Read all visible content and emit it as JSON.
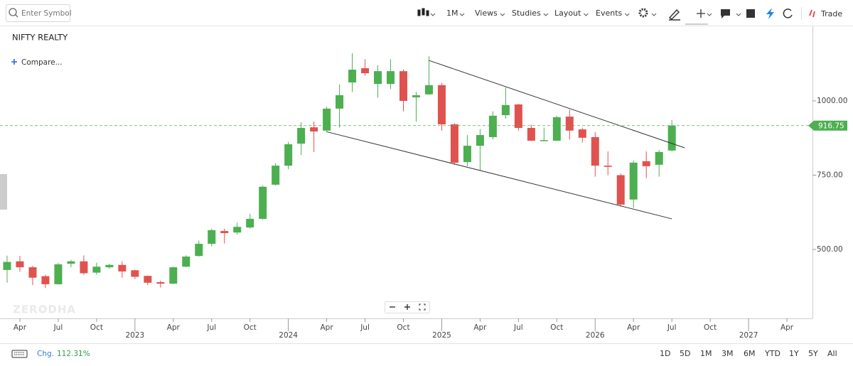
{
  "toolbar": {
    "search_placeholder": "Enter Symbol",
    "interval": "1M",
    "menus": [
      "Views",
      "Studies",
      "Layout",
      "Events"
    ],
    "trade": "Trade"
  },
  "chart_data": {
    "type": "candlestick",
    "title": "NIFTY REALTY",
    "compare": "Compare...",
    "watermark": "ZERODHA",
    "x": [
      "2022-03",
      "2022-04",
      "2022-05",
      "2022-06",
      "2022-07",
      "2022-08",
      "2022-09",
      "2022-10",
      "2022-11",
      "2022-12",
      "2023-01",
      "2023-02",
      "2023-03",
      "2023-04",
      "2023-05",
      "2023-06",
      "2023-07",
      "2023-08",
      "2023-09",
      "2023-10",
      "2023-11",
      "2023-12",
      "2024-01",
      "2024-02",
      "2024-03",
      "2024-04",
      "2024-05",
      "2024-06",
      "2024-07",
      "2024-08",
      "2024-09",
      "2024-10",
      "2024-11",
      "2024-12",
      "2025-01",
      "2025-02",
      "2025-03",
      "2025-04",
      "2025-05",
      "2025-06",
      "2025-07",
      "2025-08",
      "2025-09",
      "2025-10",
      "2025-11",
      "2025-12",
      "2026-01",
      "2026-02",
      "2026-03",
      "2026-04",
      "2026-05",
      "2026-06",
      "2026-07"
    ],
    "open": [
      431,
      460,
      440,
      410,
      383,
      452,
      460,
      422,
      440,
      448,
      430,
      411,
      390,
      385,
      442,
      478,
      519,
      562,
      557,
      574,
      603,
      718,
      782,
      856,
      911,
      900,
      974,
      1062,
      1110,
      1057,
      1057,
      1100,
      1012,
      1022,
      1053,
      921,
      794,
      849,
      878,
      952,
      988,
      909,
      866,
      866,
      947,
      904,
      878,
      782,
      750,
      668,
      797,
      785,
      833
    ],
    "high": [
      479,
      478,
      445,
      415,
      455,
      465,
      480,
      455,
      452,
      460,
      432,
      412,
      395,
      442,
      480,
      530,
      570,
      570,
      590,
      620,
      715,
      790,
      862,
      928,
      930,
      980,
      1055,
      1160,
      1140,
      1120,
      1140,
      1105,
      1030,
      1150,
      1060,
      925,
      885,
      905,
      965,
      1045,
      990,
      920,
      910,
      950,
      970,
      910,
      895,
      830,
      755,
      800,
      830,
      835,
      935
    ],
    "low": [
      388,
      425,
      380,
      370,
      382,
      440,
      415,
      415,
      435,
      405,
      400,
      380,
      372,
      383,
      440,
      476,
      510,
      520,
      550,
      570,
      600,
      715,
      770,
      818,
      828,
      895,
      910,
      1030,
      1085,
      1010,
      1040,
      965,
      930,
      1020,
      900,
      785,
      780,
      765,
      870,
      940,
      900,
      865,
      865,
      865,
      870,
      860,
      745,
      750,
      645,
      640,
      740,
      745,
      830
    ],
    "close": [
      458,
      440,
      405,
      383,
      450,
      460,
      420,
      442,
      448,
      426,
      408,
      388,
      385,
      440,
      476,
      519,
      565,
      555,
      576,
      603,
      711,
      782,
      854,
      909,
      897,
      974,
      1019,
      1105,
      1093,
      1100,
      1100,
      1000,
      1019,
      1053,
      921,
      792,
      849,
      885,
      950,
      986,
      909,
      866,
      868,
      945,
      900,
      876,
      782,
      778,
      651,
      792,
      780,
      828,
      917
    ],
    "up_color": "#4caf50",
    "down_color": "#e0524f",
    "xlim": [
      "2022-02",
      "2027-06"
    ],
    "xticks": [
      {
        "value": "2022-04",
        "label": "Apr"
      },
      {
        "value": "2022-07",
        "label": "Jul"
      },
      {
        "value": "2022-10",
        "label": "Oct"
      },
      {
        "value": "2023-01",
        "label": "2023"
      },
      {
        "value": "2023-04",
        "label": "Apr"
      },
      {
        "value": "2023-07",
        "label": "Jul"
      },
      {
        "value": "2023-10",
        "label": "Oct"
      },
      {
        "value": "2024-01",
        "label": "2024"
      },
      {
        "value": "2024-04",
        "label": "Apr"
      },
      {
        "value": "2024-07",
        "label": "Jul"
      },
      {
        "value": "2024-10",
        "label": "Oct"
      },
      {
        "value": "2025-01",
        "label": "2025"
      },
      {
        "value": "2025-04",
        "label": "Apr"
      },
      {
        "value": "2025-07",
        "label": "Jul"
      },
      {
        "value": "2025-10",
        "label": "Oct"
      },
      {
        "value": "2026-01",
        "label": "2026"
      },
      {
        "value": "2026-04",
        "label": "Apr"
      },
      {
        "value": "2026-07",
        "label": "Jul"
      },
      {
        "value": "2026-10",
        "label": "Oct"
      },
      {
        "value": "2027-01",
        "label": "2027"
      },
      {
        "value": "2027-04",
        "label": "Apr"
      }
    ],
    "ylim": [
      268,
      1251
    ],
    "yticks": [
      {
        "value": 500,
        "label": "500.00"
      },
      {
        "value": 750,
        "label": "750.00"
      },
      {
        "value": 1000,
        "label": "1000.00"
      }
    ],
    "last_price": 916.75,
    "trendlines": [
      {
        "x": [
          "2024-12",
          "2026-08"
        ],
        "y": [
          1136,
          842
        ]
      },
      {
        "x": [
          "2024-04",
          "2026-07"
        ],
        "y": [
          896,
          603
        ]
      }
    ]
  },
  "footer": {
    "change_label": "Chg.",
    "change_value": "112.31%",
    "ranges": [
      "1D",
      "5D",
      "1M",
      "3M",
      "6M",
      "YTD",
      "1Y",
      "5Y",
      "All"
    ]
  }
}
